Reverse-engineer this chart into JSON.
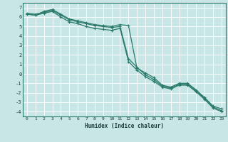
{
  "title": "",
  "xlabel": "Humidex (Indice chaleur)",
  "ylabel": "",
  "bg_color": "#c8e6e6",
  "grid_color": "#ffffff",
  "line_color": "#2a7a6a",
  "marker_color": "#2a7a6a",
  "xlim": [
    -0.5,
    23.5
  ],
  "ylim": [
    -4.5,
    7.5
  ],
  "xticks": [
    0,
    1,
    2,
    3,
    4,
    5,
    6,
    7,
    8,
    9,
    10,
    11,
    12,
    13,
    14,
    15,
    16,
    17,
    18,
    19,
    20,
    21,
    22,
    23
  ],
  "yticks": [
    -4,
    -3,
    -2,
    -1,
    0,
    1,
    2,
    3,
    4,
    5,
    6,
    7
  ],
  "lines": [
    {
      "x": [
        0,
        1,
        2,
        3,
        4,
        5,
        6,
        7,
        8,
        9,
        10,
        11,
        12,
        13,
        14,
        15,
        16,
        17,
        18,
        19,
        20,
        21,
        22,
        23
      ],
      "y": [
        6.3,
        6.2,
        6.6,
        6.8,
        6.3,
        5.8,
        5.6,
        5.4,
        5.2,
        5.1,
        5.0,
        5.2,
        5.1,
        0.6,
        0.1,
        -0.4,
        -1.2,
        -1.4,
        -1.0,
        -1.0,
        -1.7,
        -2.5,
        -3.4,
        -3.7
      ]
    },
    {
      "x": [
        0,
        1,
        2,
        3,
        4,
        5,
        6,
        7,
        8,
        9,
        10,
        11,
        12,
        13,
        14,
        15,
        16,
        17,
        18,
        19,
        20,
        21,
        22,
        23
      ],
      "y": [
        6.4,
        6.3,
        6.5,
        6.7,
        6.2,
        5.7,
        5.5,
        5.3,
        5.1,
        5.0,
        4.9,
        5.0,
        1.6,
        0.7,
        -0.1,
        -0.6,
        -1.3,
        -1.5,
        -1.1,
        -1.1,
        -1.8,
        -2.6,
        -3.5,
        -3.9
      ]
    },
    {
      "x": [
        0,
        1,
        2,
        3,
        4,
        5,
        6,
        7,
        8,
        9,
        10,
        11,
        12,
        13,
        14,
        15,
        16,
        17,
        18,
        19,
        20,
        21,
        22,
        23
      ],
      "y": [
        6.3,
        6.2,
        6.4,
        6.6,
        6.0,
        5.5,
        5.3,
        5.0,
        4.8,
        4.7,
        4.6,
        4.8,
        1.3,
        0.4,
        -0.3,
        -0.8,
        -1.4,
        -1.6,
        -1.2,
        -1.2,
        -1.9,
        -2.7,
        -3.6,
        -4.0
      ]
    }
  ]
}
